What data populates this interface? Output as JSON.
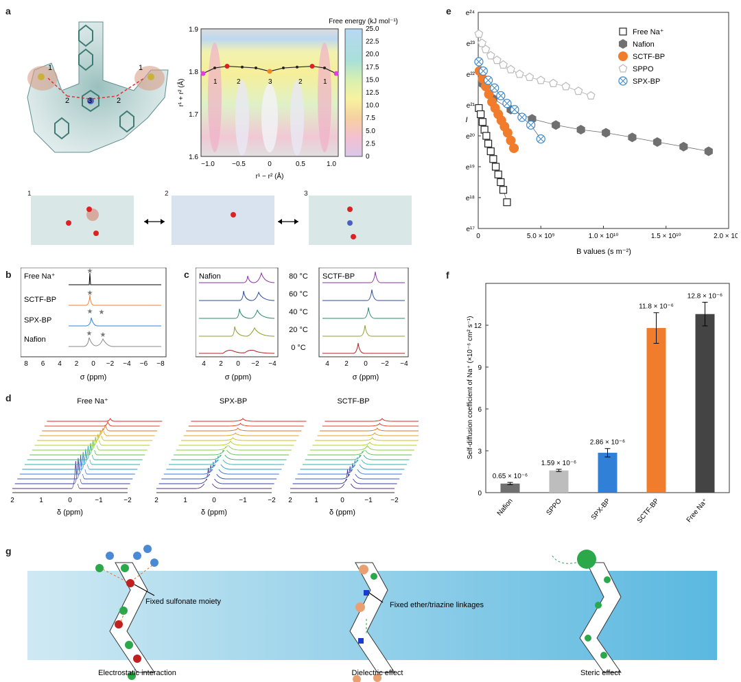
{
  "panels": {
    "a": {
      "letter": "a",
      "site_labels": [
        "1",
        "2",
        "3",
        "2",
        "1"
      ],
      "snapshot_labels": [
        "1",
        "2",
        "3"
      ],
      "pes": {
        "colorbar_title": "Free energy (kJ mol⁻¹)",
        "colorbar_ticks": [
          "25.0",
          "22.5",
          "20.0",
          "17.5",
          "15.0",
          "12.5",
          "10.0",
          "7.5",
          "5.0",
          "2.5",
          "0"
        ],
        "xlabel": "r¹ − r² (Å)",
        "ylabel": "r¹ + r² (Å)",
        "xticks": [
          "−1.0",
          "−0.5",
          "0",
          "0.5",
          "1.0"
        ],
        "yticks": [
          "1.9",
          "1.8",
          "1.7",
          "1.6"
        ],
        "path_labels": [
          "1",
          "2",
          "3",
          "2",
          "1"
        ]
      }
    },
    "b": {
      "letter": "b",
      "traces": [
        "Free Na⁺",
        "SCTF-BP",
        "SPX-BP",
        "Nafion"
      ],
      "xlabel": "σ (ppm)",
      "xticks": [
        "8",
        "6",
        "4",
        "2",
        "0",
        "−2",
        "−4",
        "−6",
        "−8"
      ]
    },
    "c": {
      "letter": "c",
      "left_title": "Nafion",
      "right_title": "SCTF-BP",
      "temperatures": [
        "80 °C",
        "60 °C",
        "40 °C",
        "20 °C",
        "0 °C"
      ],
      "xlabel": "σ (ppm)",
      "xticks": [
        "4",
        "2",
        "0",
        "−2",
        "−4"
      ]
    },
    "d": {
      "letter": "d",
      "titles": [
        "Free Na⁺",
        "SPX-BP",
        "SCTF-BP"
      ],
      "xlabel": "δ (ppm)",
      "xticks": [
        "2",
        "1",
        "0",
        "−1",
        "−2"
      ]
    },
    "e": {
      "letter": "e",
      "legend": [
        "Free Na⁺",
        "Nafion",
        "SCTF-BP",
        "SPPO",
        "SPX-BP"
      ],
      "ylabel": "I",
      "xlabel": "B values (s m⁻²)",
      "yticks": [
        "e²⁴",
        "e²³",
        "e²²",
        "e²¹",
        "e²⁰",
        "e¹⁹",
        "e¹⁸",
        "e¹⁷"
      ],
      "xticks": [
        "0",
        "5.0 × 10⁹",
        "1.0 × 10¹⁰",
        "1.5 × 10¹⁰",
        "2.0 × 10¹⁰"
      ]
    },
    "f": {
      "letter": "f",
      "ylabel": "Self-diffusion coefficient of Na⁺ (×10⁻⁶ cm² s⁻¹)",
      "yticks": [
        "0",
        "3",
        "6",
        "9",
        "12"
      ],
      "value_labels": [
        "0.65 × 10⁻⁶",
        "1.59 × 10⁻⁶",
        "2.86 × 10⁻⁶",
        "11.8 × 10⁻⁶",
        "12.8 × 10⁻⁶"
      ]
    },
    "g": {
      "letter": "g",
      "annotation_sulfonate": "Fixed sulfonate  moiety",
      "annotation_linkages": "Fixed ether/triazine linkages",
      "captions": [
        "Electrostatic interaction",
        "Dielectric effect",
        "Steric effect"
      ]
    }
  },
  "chart_data": [
    {
      "type": "scatter",
      "panel": "e",
      "x_unit": "s m⁻²",
      "y_scale": "ln",
      "xlim": [
        0,
        20000000000.0
      ],
      "ylim": [
        17,
        24
      ],
      "legend_placement": "top-right",
      "series": [
        {
          "name": "Free Na⁺",
          "marker": "open-square",
          "color": "#222222",
          "x": [
            50000000.0,
            200000000.0,
            350000000.0,
            500000000.0,
            650000000.0,
            800000000.0,
            1000000000.0,
            1200000000.0,
            1400000000.0,
            1600000000.0,
            1800000000.0,
            2000000000.0,
            2300000000.0
          ],
          "y": [
            20.9,
            20.7,
            20.45,
            20.2,
            20.0,
            19.75,
            19.5,
            19.25,
            19.0,
            18.75,
            18.5,
            18.25,
            17.85
          ]
        },
        {
          "name": "Nafion",
          "marker": "hexagon",
          "color": "#707070",
          "x": [
            300000000.0,
            1200000000.0,
            2600000000.0,
            4300000000.0,
            6200000000.0,
            8200000000.0,
            10200000000.0,
            12300000000.0,
            14300000000.0,
            16400000000.0,
            18400000000.0
          ],
          "y": [
            21.7,
            21.2,
            20.85,
            20.55,
            20.35,
            20.2,
            20.1,
            19.95,
            19.8,
            19.65,
            19.5
          ]
        },
        {
          "name": "SCTF-BP",
          "marker": "circle",
          "color": "#f07c2c",
          "x": [
            100000000.0,
            350000000.0,
            600000000.0,
            850000000.0,
            1100000000.0,
            1350000000.0,
            1600000000.0,
            1850000000.0,
            2100000000.0,
            2350000000.0,
            2600000000.0,
            2850000000.0
          ],
          "y": [
            22.1,
            21.85,
            21.6,
            21.35,
            21.1,
            20.9,
            20.7,
            20.5,
            20.3,
            20.1,
            19.85,
            19.6
          ]
        },
        {
          "name": "SPPO",
          "marker": "open-pentagon",
          "color": "#bbbbbb",
          "x": [
            50000000.0,
            300000000.0,
            600000000.0,
            1000000000.0,
            1500000000.0,
            2000000000.0,
            2600000000.0,
            3300000000.0,
            4100000000.0,
            5000000000.0,
            6000000000.0,
            7000000000.0,
            8000000000.0,
            9000000000.0
          ],
          "y": [
            23.3,
            23.0,
            22.8,
            22.6,
            22.45,
            22.3,
            22.15,
            22.0,
            21.9,
            21.8,
            21.7,
            21.6,
            21.45,
            21.3
          ]
        },
        {
          "name": "SPX-BP",
          "marker": "open-circle-x",
          "color": "#3a86c8",
          "x": [
            50000000.0,
            400000000.0,
            800000000.0,
            1300000000.0,
            1800000000.0,
            2300000000.0,
            2900000000.0,
            3500000000.0,
            4200000000.0,
            5000000000.0
          ],
          "y": [
            22.4,
            22.1,
            21.8,
            21.55,
            21.3,
            21.05,
            20.85,
            20.6,
            20.35,
            19.9
          ]
        }
      ]
    },
    {
      "type": "bar",
      "panel": "f",
      "categories": [
        "Nafion",
        "SPPO",
        "SPX-BP",
        "SCTF-BP",
        "Free Na⁺"
      ],
      "values": [
        0.65,
        1.59,
        2.86,
        11.8,
        12.8
      ],
      "errors": [
        0.08,
        0.08,
        0.3,
        1.1,
        0.85
      ],
      "colors": [
        "#707070",
        "#bdbdbd",
        "#2f80d6",
        "#f07c2c",
        "#444444"
      ],
      "ylim": [
        0,
        15
      ]
    },
    {
      "type": "heatmap",
      "panel": "a",
      "xlim": [
        -1.0,
        1.0
      ],
      "ylim": [
        1.6,
        1.9
      ],
      "zlim": [
        0,
        25.0
      ],
      "path": {
        "x": [
          -0.97,
          -0.8,
          -0.62,
          -0.4,
          -0.2,
          0,
          0.2,
          0.4,
          0.62,
          0.8,
          0.97
        ],
        "y": [
          1.795,
          1.808,
          1.812,
          1.81,
          1.808,
          1.8,
          1.808,
          1.81,
          1.812,
          1.808,
          1.795
        ]
      }
    }
  ]
}
